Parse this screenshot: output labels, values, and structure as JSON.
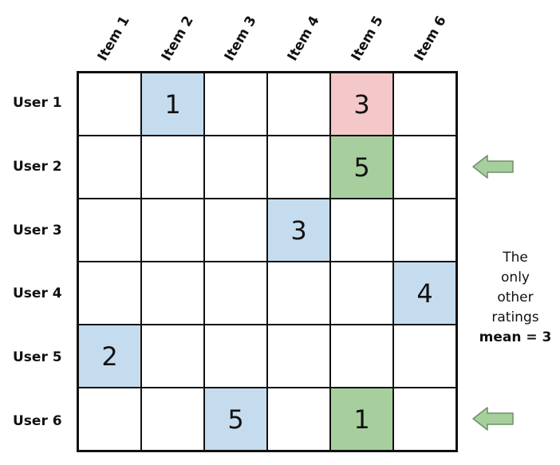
{
  "items": [
    "Item 1",
    "Item 2",
    "Item 3",
    "Item 4",
    "Item 5",
    "Item 6"
  ],
  "users": [
    "User 1",
    "User 2",
    "User 3",
    "User 4",
    "User 5",
    "User 6"
  ],
  "ratings": [
    [
      "",
      "1",
      "",
      "",
      "3",
      ""
    ],
    [
      "",
      "",
      "",
      "",
      "5",
      ""
    ],
    [
      "",
      "",
      "",
      "3",
      "",
      ""
    ],
    [
      "",
      "",
      "",
      "",
      "",
      "4"
    ],
    [
      "2",
      "",
      "",
      "",
      "",
      ""
    ],
    [
      "",
      "",
      "5",
      "",
      "1",
      ""
    ]
  ],
  "cell_colors": [
    [
      "",
      "#c5dcee",
      "",
      "",
      "#f4c7c8",
      ""
    ],
    [
      "",
      "",
      "",
      "",
      "#a7cf9e",
      ""
    ],
    [
      "",
      "",
      "",
      "#c5dcee",
      "",
      ""
    ],
    [
      "",
      "",
      "",
      "",
      "",
      "#c5dcee"
    ],
    [
      "#c5dcee",
      "",
      "",
      "",
      "",
      ""
    ],
    [
      "",
      "",
      "#c5dcee",
      "",
      "#a7cf9e",
      ""
    ]
  ],
  "colors": {
    "blue": "#c5dcee",
    "red": "#f4c7c8",
    "green": "#a7cf9e",
    "arrow_fill": "#a7cf9e",
    "arrow_stroke": "#6f8f67"
  },
  "annotation": {
    "line1": "The",
    "line2": "only",
    "line3": "other",
    "line4": "ratings",
    "line5": "mean = 3"
  },
  "arrows": [
    {
      "row": "User 2",
      "icon": "left-arrow-icon"
    },
    {
      "row": "User 6",
      "icon": "left-arrow-icon"
    }
  ]
}
